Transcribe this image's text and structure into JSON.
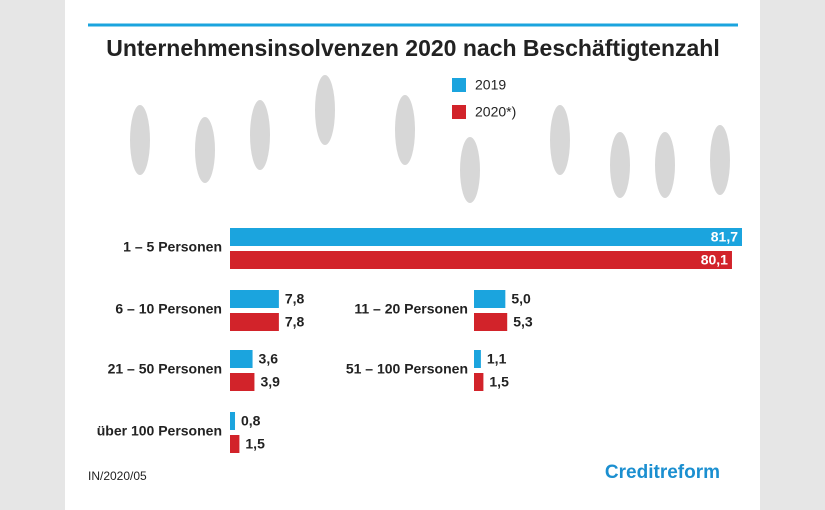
{
  "chart_data": {
    "type": "bar",
    "orientation": "horizontal",
    "title": "Unternehmensinsolvenzen 2020 nach Beschäftigtenzahl",
    "categories": [
      "1 – 5 Personen",
      "6 – 10 Personen",
      "11 – 20 Personen",
      "21 – 50 Personen",
      "51 – 100 Personen",
      "über 100 Personen"
    ],
    "series": [
      {
        "name": "2019",
        "color": "#1ba4de",
        "values": [
          81.7,
          7.8,
          5.0,
          3.6,
          1.1,
          0.8
        ],
        "value_labels": [
          "81,7",
          "7,8",
          "5,0",
          "3,6",
          "1,1",
          "0,8"
        ]
      },
      {
        "name": "2020*)",
        "color": "#d2232a",
        "values": [
          80.1,
          7.8,
          5.3,
          3.9,
          1.5,
          1.5
        ],
        "value_labels": [
          "80,1",
          "7,8",
          "5,3",
          "3,9",
          "1,5",
          "1,5"
        ]
      }
    ],
    "footnote": "IN/2020/05",
    "brand": "Creditreform"
  }
}
